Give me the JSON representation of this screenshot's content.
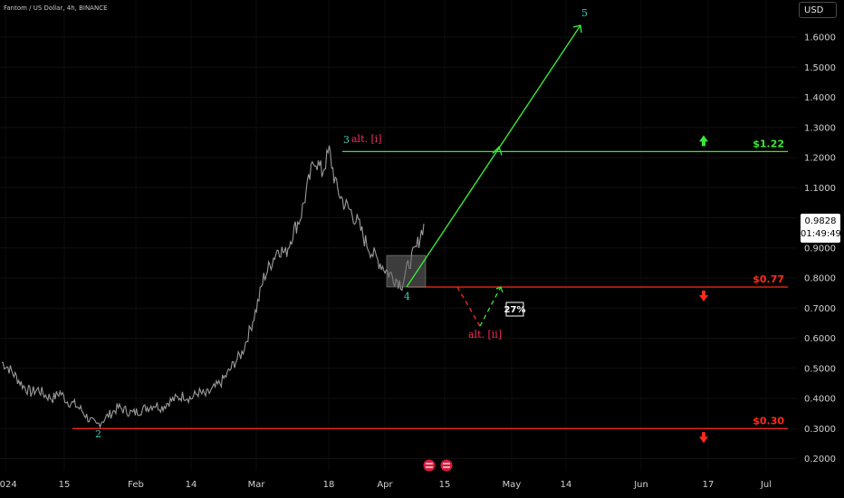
{
  "header": {
    "title": "Fantom / US Dollar, 4h, BINANCE",
    "currency": "USD"
  },
  "last_price": {
    "value": "0.9828",
    "countdown": "01:49:49"
  },
  "chart_data": {
    "type": "line",
    "y_ticks": [
      "1.6000",
      "1.5000",
      "1.4000",
      "1.3000",
      "1.2000",
      "1.1000",
      "1.0000",
      "0.9000",
      "0.8000",
      "0.7000",
      "0.6000",
      "0.5000",
      "0.4000",
      "0.3000",
      "0.2000"
    ],
    "x_ticks": [
      "2024",
      "15",
      "Feb",
      "14",
      "Mar",
      "18",
      "Apr",
      "15",
      "May",
      "14",
      "Jun",
      "17",
      "Jul"
    ],
    "ylim": [
      0.18,
      1.75
    ],
    "price_series": [
      0.52,
      0.5,
      0.47,
      0.44,
      0.42,
      0.43,
      0.41,
      0.4,
      0.42,
      0.39,
      0.38,
      0.36,
      0.33,
      0.31,
      0.33,
      0.35,
      0.37,
      0.36,
      0.35,
      0.36,
      0.37,
      0.38,
      0.37,
      0.39,
      0.4,
      0.41,
      0.4,
      0.42,
      0.41,
      0.43,
      0.45,
      0.48,
      0.52,
      0.55,
      0.62,
      0.7,
      0.8,
      0.85,
      0.9,
      0.88,
      0.95,
      1.0,
      1.1,
      1.2,
      1.15,
      1.22,
      1.1,
      1.05,
      1.02,
      0.98,
      0.92,
      0.88,
      0.85,
      0.82,
      0.8,
      0.78,
      0.85,
      0.9,
      0.98
    ],
    "levels": [
      {
        "price": 1.22,
        "label": "$1.22",
        "color": "#39e639",
        "arrow": "up"
      },
      {
        "price": 0.77,
        "label": "$0.77",
        "color": "#ff2a1a",
        "arrow": "down"
      },
      {
        "price": 0.3,
        "label": "$0.30",
        "color": "#ff2a1a",
        "arrow": "down"
      }
    ],
    "wave_labels": [
      {
        "text": "5",
        "color": "#3ec9b5"
      },
      {
        "text": "3",
        "color": "#3ec9b5"
      },
      {
        "text": "alt. [i]",
        "color": "#ff2a5a"
      },
      {
        "text": "4",
        "color": "#3ec9b5"
      },
      {
        "text": "alt. [ii]",
        "color": "#ff2a5a"
      },
      {
        "text": "2",
        "color": "#3ec9b5"
      }
    ],
    "percent_box": "27%"
  }
}
